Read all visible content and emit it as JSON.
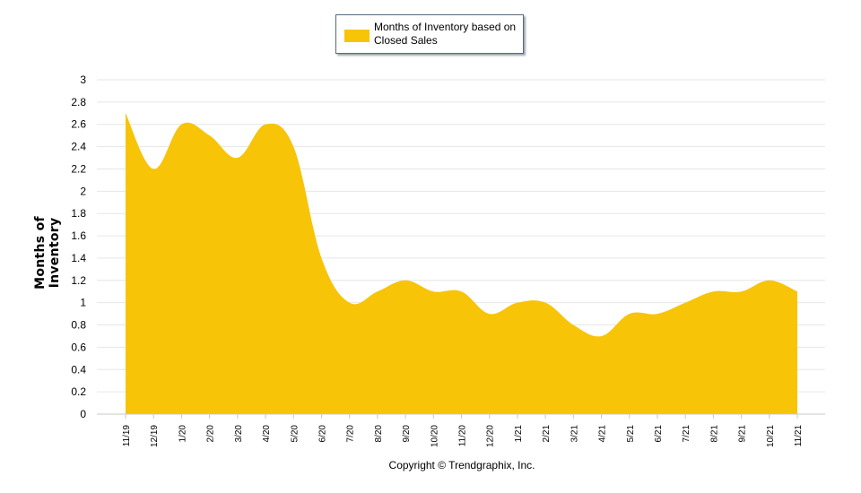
{
  "chart_data": {
    "type": "area",
    "title": "",
    "xlabel": "",
    "ylabel": "Months of Inventory",
    "ylim": [
      0,
      3
    ],
    "yticks": [
      "0",
      "0.2",
      "0.4",
      "0.6",
      "0.8",
      "1",
      "1.2",
      "1.4",
      "1.6",
      "1.8",
      "2",
      "2.2",
      "2.4",
      "2.6",
      "2.8",
      "3"
    ],
    "categories": [
      "11/19",
      "12/19",
      "1/20",
      "2/20",
      "3/20",
      "4/20",
      "5/20",
      "6/20",
      "7/20",
      "8/20",
      "9/20",
      "10/20",
      "11/20",
      "12/20",
      "1/21",
      "2/21",
      "3/21",
      "4/21",
      "5/21",
      "6/21",
      "7/21",
      "8/21",
      "9/21",
      "10/21",
      "11/21"
    ],
    "series": [
      {
        "name": "Months of Inventory based on Closed Sales",
        "color": "#f7c408",
        "values": [
          2.7,
          2.2,
          2.6,
          2.5,
          2.3,
          2.6,
          2.4,
          1.4,
          1.0,
          1.1,
          1.2,
          1.1,
          1.1,
          0.9,
          1.0,
          1.0,
          0.8,
          0.7,
          0.9,
          0.9,
          1.0,
          1.1,
          1.1,
          1.2,
          1.1
        ]
      }
    ],
    "legend": "top-center",
    "grid": true
  },
  "legend": {
    "label": "Months of Inventory based on Closed Sales",
    "color": "#f7c408"
  },
  "ylabel": "Months of Inventory",
  "copyright": "Copyright © Trendgraphix, Inc."
}
